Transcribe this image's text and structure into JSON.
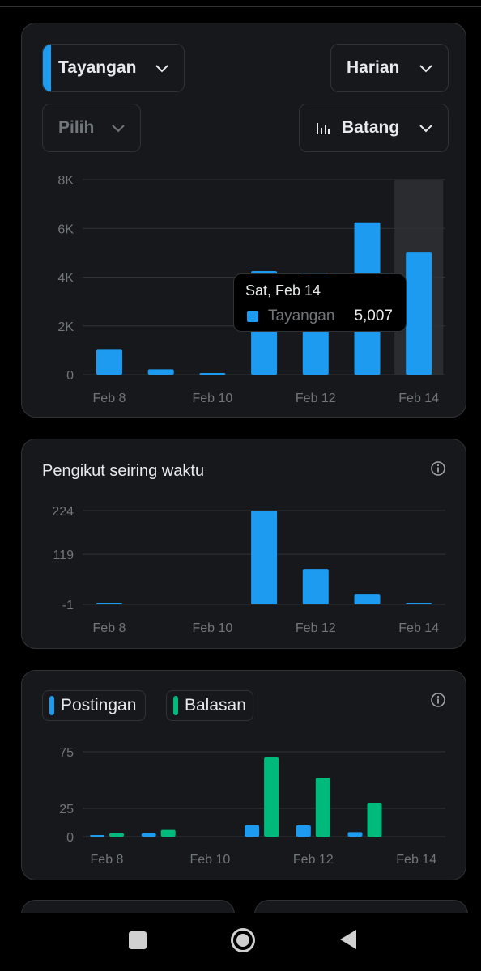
{
  "colors": {
    "accent_blue": "#1d9bf0",
    "accent_green": "#00ba7c",
    "card_bg": "#16181c",
    "border": "#2f3336",
    "muted": "#71767b"
  },
  "controls": {
    "metric_select": {
      "label": "Tayangan",
      "icon": "chevron-down-icon"
    },
    "period_select": {
      "label": "Harian",
      "icon": "chevron-down-icon"
    },
    "compare_select": {
      "label": "Pilih",
      "icon": "chevron-down-icon"
    },
    "chart_type_select": {
      "label": "Batang",
      "icon": "bar-chart-icon"
    }
  },
  "tooltip": {
    "date": "Sat, Feb 14",
    "series": "Tayangan",
    "value": "5,007"
  },
  "followers_card": {
    "title": "Pengikut seiring waktu",
    "info_icon": "info-icon"
  },
  "posts_card": {
    "legend": [
      {
        "label": "Postingan",
        "color": "#1d9bf0"
      },
      {
        "label": "Balasan",
        "color": "#00ba7c"
      }
    ],
    "info_icon": "info-icon"
  },
  "navbar": {
    "buttons": [
      "recents-square-icon",
      "home-circle-icon",
      "back-triangle-icon"
    ]
  },
  "chart_data": [
    {
      "type": "bar",
      "x": [
        "Feb 8",
        "Feb 9",
        "Feb 10",
        "Feb 11",
        "Feb 12",
        "Feb 13",
        "Feb 14"
      ],
      "x_tick_labels": [
        "Feb 8",
        "Feb 10",
        "Feb 12",
        "Feb 14"
      ],
      "series": [
        {
          "name": "Tayangan",
          "values": [
            1050,
            220,
            50,
            4250,
            4180,
            6250,
            5007
          ]
        }
      ],
      "y_ticks": [
        "8K",
        "6K",
        "4K",
        "2K",
        "0"
      ],
      "ylim": [
        0,
        8000
      ],
      "highlighted": "Feb 14",
      "grid": true
    },
    {
      "type": "bar",
      "x": [
        "Feb 8",
        "Feb 9",
        "Feb 10",
        "Feb 11",
        "Feb 12",
        "Feb 13",
        "Feb 14"
      ],
      "x_tick_labels": [
        "Feb 8",
        "Feb 10",
        "Feb 12",
        "Feb 14"
      ],
      "series": [
        {
          "values": [
            2,
            -1,
            -1,
            224,
            84,
            24,
            1
          ]
        }
      ],
      "y_ticks": [
        "224",
        "119",
        "-1"
      ],
      "ylim": [
        -1,
        224
      ],
      "grid": true
    },
    {
      "type": "bar",
      "x": [
        "Feb 8",
        "Feb 9",
        "Feb 10",
        "Feb 11",
        "Feb 12",
        "Feb 13",
        "Feb 14"
      ],
      "x_tick_labels": [
        "Feb 8",
        "Feb 10",
        "Feb 12",
        "Feb 14"
      ],
      "series": [
        {
          "name": "Postingan",
          "values": [
            1,
            3,
            0,
            10,
            10,
            4,
            0
          ]
        },
        {
          "name": "Balasan",
          "values": [
            3,
            6,
            0,
            70,
            52,
            30,
            0
          ]
        }
      ],
      "y_ticks": [
        "75",
        "25",
        "0"
      ],
      "ylim": [
        0,
        75
      ],
      "grid": true
    }
  ]
}
